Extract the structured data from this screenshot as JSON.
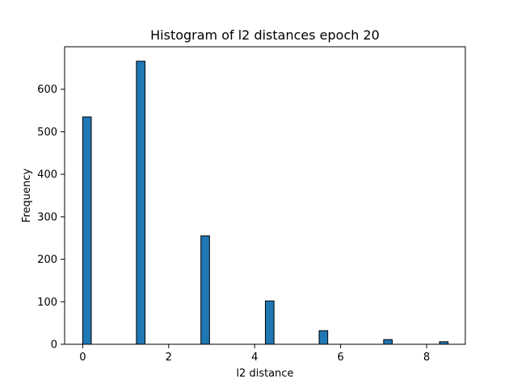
{
  "chart_data": {
    "type": "bar",
    "title": "Histogram of l2 distances epoch 20",
    "xlabel": "l2 distance",
    "ylabel": "Frequency",
    "xlim": [
      -0.42,
      8.9
    ],
    "ylim": [
      0,
      700
    ],
    "xticks": [
      0,
      2,
      4,
      6,
      8
    ],
    "yticks": [
      0,
      100,
      200,
      300,
      400,
      500,
      600
    ],
    "grid": false,
    "legend": "none",
    "bin_width": 0.2,
    "bars": [
      {
        "x": 0.1,
        "value": 535
      },
      {
        "x": 1.35,
        "value": 666
      },
      {
        "x": 2.85,
        "value": 255
      },
      {
        "x": 4.35,
        "value": 102
      },
      {
        "x": 5.6,
        "value": 32
      },
      {
        "x": 7.1,
        "value": 11
      },
      {
        "x": 8.4,
        "value": 6
      }
    ],
    "colors": {
      "bar_fill": "#1f77b4",
      "bar_edge": "#000000"
    }
  }
}
